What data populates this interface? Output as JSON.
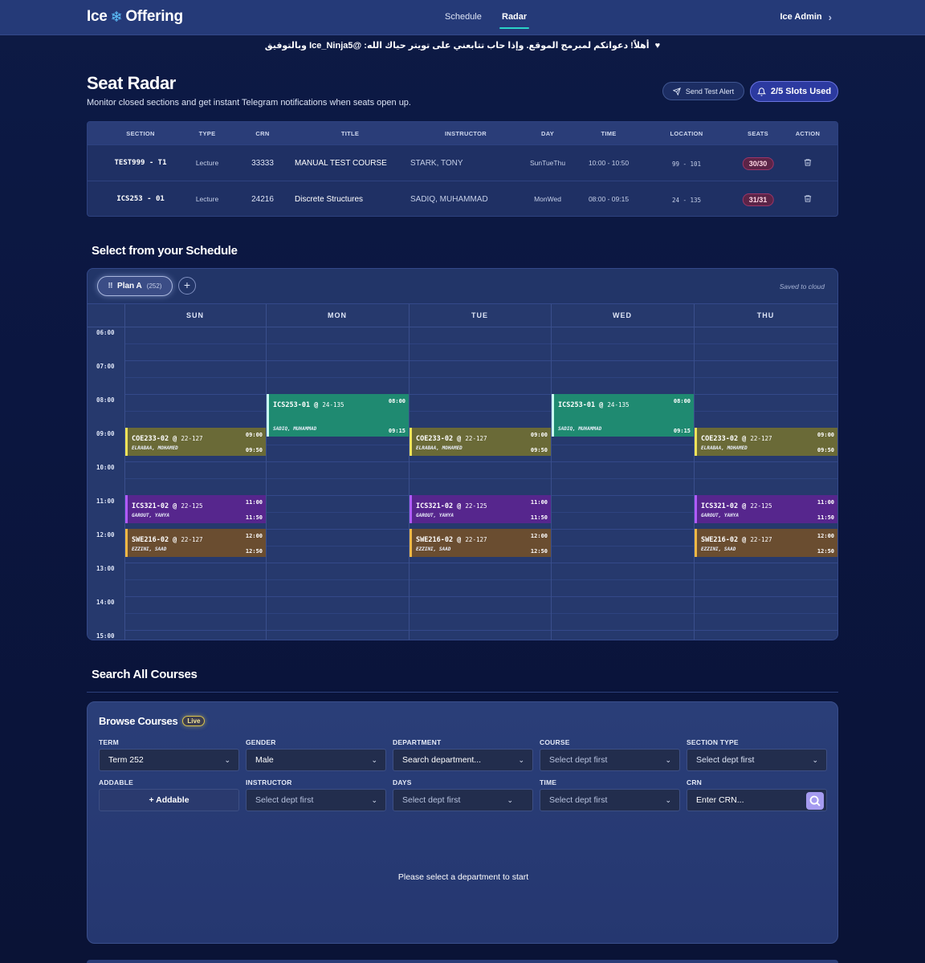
{
  "app": {
    "logo_left": "Ice",
    "logo_right": "Offering",
    "nav": [
      "Schedule",
      "Radar"
    ],
    "active_nav": "Radar",
    "user": "Ice Admin"
  },
  "banner": {
    "text": "أهلاً! دعواتكم لمبرمج الموقع. وإذا حاب تتابعني على تويتر حياك الله: @Ice_Ninja5 وبالتوفيق"
  },
  "header": {
    "title": "Seat Radar",
    "subtitle": "Monitor closed sections and get instant Telegram notifications when seats open up.",
    "test_button": "Send Test Alert",
    "slots_button": "2/5 Slots Used"
  },
  "radar_table": {
    "columns": [
      "SECTION",
      "TYPE",
      "CRN",
      "TITLE",
      "INSTRUCTOR",
      "DAY",
      "TIME",
      "LOCATION",
      "SEATS",
      "ACTION"
    ],
    "rows": [
      {
        "section": "TEST999 - T1",
        "type": "Lecture",
        "crn": "33333",
        "title": "MANUAL TEST COURSE",
        "instructor": "STARK, TONY",
        "day": "SunTueThu",
        "time": "10:00 - 10:50",
        "location": "99 - 101",
        "seats": "30/30"
      },
      {
        "section": "ICS253 - 01",
        "type": "Lecture",
        "crn": "24216",
        "title": "Discrete Structures",
        "instructor": "SADIQ, MUHAMMAD",
        "day": "MonWed",
        "time": "08:00 - 09:15",
        "location": "24 - 135",
        "seats": "31/31"
      }
    ]
  },
  "schedule": {
    "section_title": "Select from your Schedule",
    "plan_name": "Plan A",
    "plan_term": "(252)",
    "saved": "Saved to cloud",
    "days": [
      "SUN",
      "MON",
      "TUE",
      "WED",
      "THU"
    ],
    "times": [
      "06:00",
      "07:00",
      "08:00",
      "09:00",
      "10:00",
      "11:00",
      "12:00",
      "13:00",
      "14:00",
      "15:00"
    ],
    "events": [
      {
        "kind": "coe",
        "day": 0,
        "code": "COE233-02",
        "room": "22-127",
        "instructor": "ELRABAA, MOHAMED",
        "start": "09:00",
        "end": "09:50"
      },
      {
        "kind": "coe",
        "day": 2,
        "code": "COE233-02",
        "room": "22-127",
        "instructor": "ELRABAA, MOHAMED",
        "start": "09:00",
        "end": "09:50"
      },
      {
        "kind": "coe",
        "day": 4,
        "code": "COE233-02",
        "room": "22-127",
        "instructor": "ELRABAA, MOHAMED",
        "start": "09:00",
        "end": "09:50"
      },
      {
        "kind": "ics253",
        "day": 1,
        "code": "ICS253-01",
        "room": "24-135",
        "instructor": "SADIQ, MUHAMMAD",
        "start": "08:00",
        "end": "09:15"
      },
      {
        "kind": "ics253",
        "day": 3,
        "code": "ICS253-01",
        "room": "24-135",
        "instructor": "SADIQ, MUHAMMAD",
        "start": "08:00",
        "end": "09:15"
      },
      {
        "kind": "ics321",
        "day": 0,
        "code": "ICS321-02",
        "room": "22-125",
        "instructor": "GAROUT, YAHYA",
        "start": "11:00",
        "end": "11:50"
      },
      {
        "kind": "ics321",
        "day": 2,
        "code": "ICS321-02",
        "room": "22-125",
        "instructor": "GAROUT, YAHYA",
        "start": "11:00",
        "end": "11:50"
      },
      {
        "kind": "ics321",
        "day": 4,
        "code": "ICS321-02",
        "room": "22-125",
        "instructor": "GAROUT, YAHYA",
        "start": "11:00",
        "end": "11:50"
      },
      {
        "kind": "swe",
        "day": 0,
        "code": "SWE216-02",
        "room": "22-127",
        "instructor": "EZZINI, SAAD",
        "start": "12:00",
        "end": "12:50"
      },
      {
        "kind": "swe",
        "day": 2,
        "code": "SWE216-02",
        "room": "22-127",
        "instructor": "EZZINI, SAAD",
        "start": "12:00",
        "end": "12:50"
      },
      {
        "kind": "swe",
        "day": 4,
        "code": "SWE216-02",
        "room": "22-127",
        "instructor": "EZZINI, SAAD",
        "start": "12:00",
        "end": "12:50"
      }
    ]
  },
  "search": {
    "section_title": "Search All Courses",
    "browse_title": "Browse Courses",
    "live_badge": "Live",
    "filters": {
      "term": {
        "label": "TERM",
        "value": "Term 252"
      },
      "gender": {
        "label": "GENDER",
        "value": "Male"
      },
      "department": {
        "label": "DEPARTMENT",
        "value": "Search department..."
      },
      "course": {
        "label": "COURSE",
        "value": "Select dept first"
      },
      "section_type": {
        "label": "SECTION TYPE",
        "value": "Select dept first"
      },
      "addable": {
        "label": "ADDABLE",
        "value": "+ Addable"
      },
      "instructor": {
        "label": "INSTRUCTOR",
        "value": "Select dept first"
      },
      "days": {
        "label": "DAYS",
        "value": "Select dept first"
      },
      "time": {
        "label": "TIME",
        "value": "Select dept first"
      },
      "crn": {
        "label": "CRN",
        "placeholder": "Enter CRN..."
      }
    },
    "empty_message": "Please select a department to start"
  },
  "colors": {
    "accent": "#2ad4c8",
    "coe": "#6a6a37",
    "ics253": "#1f8a71",
    "ics321": "#56268d",
    "swe": "#6a4d30"
  }
}
